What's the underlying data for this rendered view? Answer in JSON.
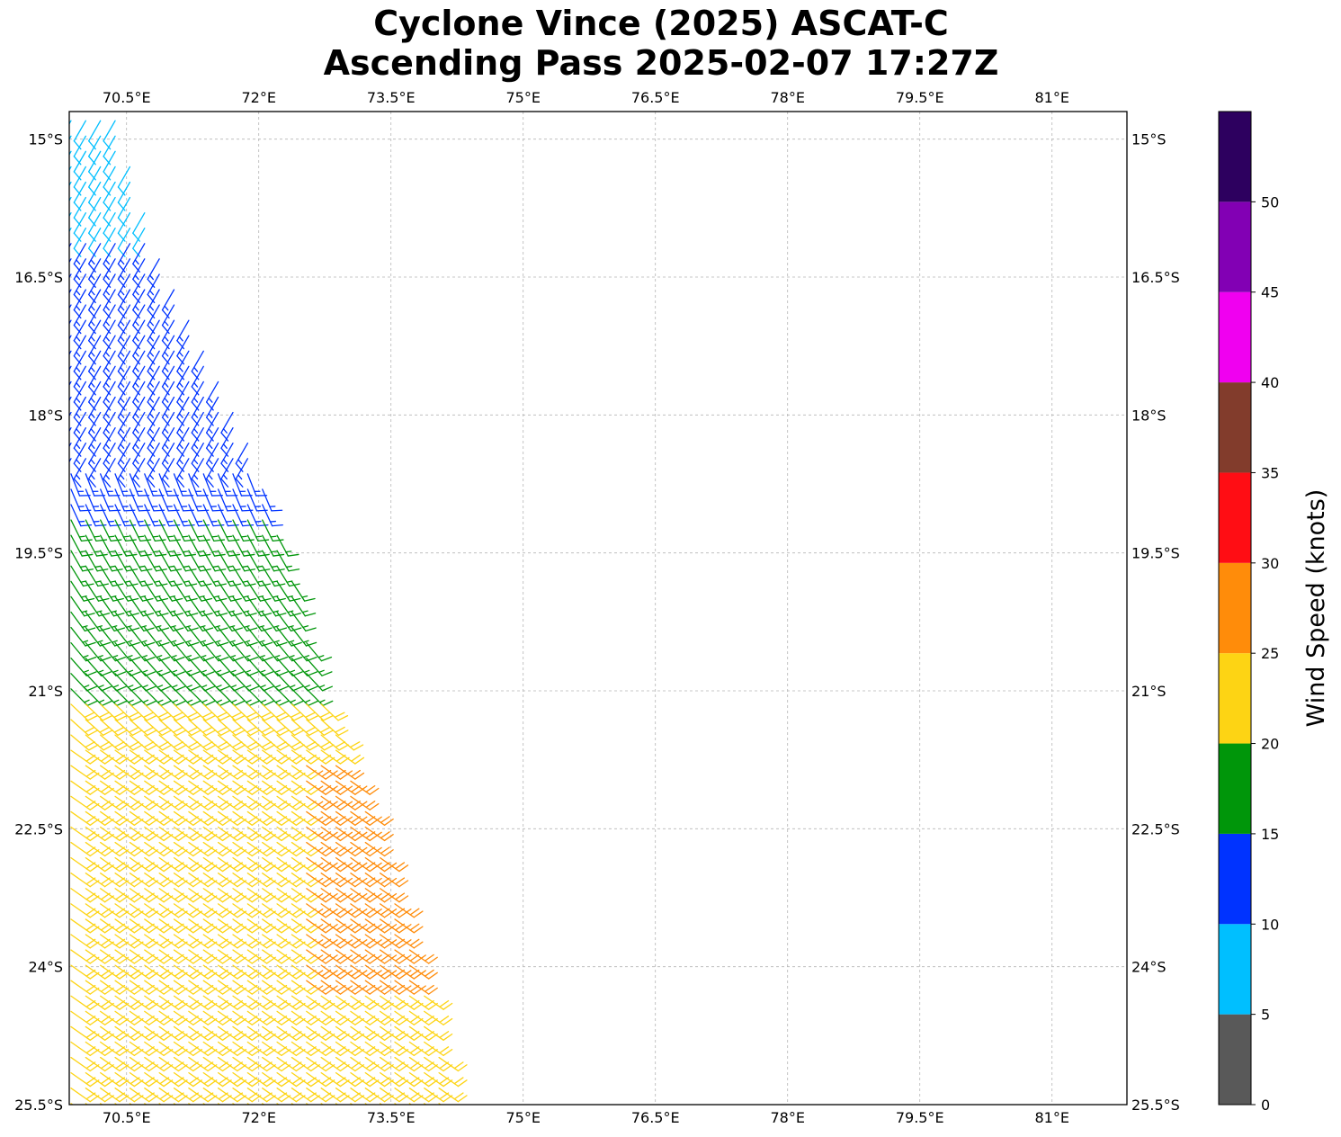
{
  "title": {
    "line1": "Cyclone Vince (2025) ASCAT-C",
    "line2": "Ascending Pass 2025-02-07 17:27Z"
  },
  "map": {
    "lon_range": [
      69.85,
      81.85
    ],
    "lat_range": [
      -25.5,
      -14.7
    ],
    "grid": true,
    "lon_ticks": [
      {
        "value": 70.5,
        "label": "70.5°E"
      },
      {
        "value": 72.0,
        "label": "72°E"
      },
      {
        "value": 73.5,
        "label": "73.5°E"
      },
      {
        "value": 75.0,
        "label": "75°E"
      },
      {
        "value": 76.5,
        "label": "76.5°E"
      },
      {
        "value": 78.0,
        "label": "78°E"
      },
      {
        "value": 79.5,
        "label": "79.5°E"
      },
      {
        "value": 81.0,
        "label": "81°E"
      }
    ],
    "lat_ticks": [
      {
        "value": -15.0,
        "label": "15°S"
      },
      {
        "value": -16.5,
        "label": "16.5°S"
      },
      {
        "value": -18.0,
        "label": "18°S"
      },
      {
        "value": -19.5,
        "label": "19.5°S"
      },
      {
        "value": -21.0,
        "label": "21°S"
      },
      {
        "value": -22.5,
        "label": "22.5°S"
      },
      {
        "value": -24.0,
        "label": "24°S"
      },
      {
        "value": -25.5,
        "label": "25.5°S"
      }
    ]
  },
  "colorbar": {
    "label": "Wind Speed (knots)",
    "ticks": [
      "0",
      "5",
      "10",
      "15",
      "20",
      "25",
      "30",
      "35",
      "40",
      "45",
      "50"
    ],
    "bins": [
      {
        "min": 0,
        "max": 5,
        "color": "#595959"
      },
      {
        "min": 5,
        "max": 10,
        "color": "#00bfff"
      },
      {
        "min": 10,
        "max": 15,
        "color": "#0033ff"
      },
      {
        "min": 15,
        "max": 20,
        "color": "#00960a"
      },
      {
        "min": 20,
        "max": 25,
        "color": "#fdd414"
      },
      {
        "min": 25,
        "max": 30,
        "color": "#ff8c0a"
      },
      {
        "min": 30,
        "max": 35,
        "color": "#ff0d14"
      },
      {
        "min": 35,
        "max": 40,
        "color": "#823c2c"
      },
      {
        "min": 40,
        "max": 45,
        "color": "#f000f0"
      },
      {
        "min": 45,
        "max": 50,
        "color": "#8200b4"
      },
      {
        "min": 50,
        "max": 55,
        "color": "#2d005f"
      }
    ]
  },
  "chart_data": {
    "type": "scatter",
    "description_of_marks": "wind barbs",
    "swath": {
      "east_edge": [
        {
          "lat": -14.7,
          "lon": 70.4
        },
        {
          "lat": -16.0,
          "lon": 70.8
        },
        {
          "lat": -18.0,
          "lon": 71.8
        },
        {
          "lat": -19.5,
          "lon": 72.3
        },
        {
          "lat": -21.0,
          "lon": 72.7
        },
        {
          "lat": -22.5,
          "lon": 73.3
        },
        {
          "lat": -24.0,
          "lon": 73.8
        },
        {
          "lat": -25.5,
          "lon": 74.2
        }
      ],
      "west_edge_lon": 69.85,
      "row_spacing_deg": 0.167,
      "col_spacing_deg": 0.167
    },
    "speed_zones": [
      {
        "lat_from": -14.7,
        "lat_to": -16.0,
        "speed_kt": 9
      },
      {
        "lat_from": -16.0,
        "lat_to": -19.0,
        "speed_kt": 13
      },
      {
        "lat_from": -19.0,
        "lat_to": -21.0,
        "speed_kt": 17
      },
      {
        "lat_from": -21.0,
        "lat_to": -25.5,
        "speed_kt": 22
      },
      {
        "lat_from": -21.8,
        "lat_to": -24.3,
        "speed_kt": 27,
        "lon_min": 72.4
      }
    ]
  }
}
